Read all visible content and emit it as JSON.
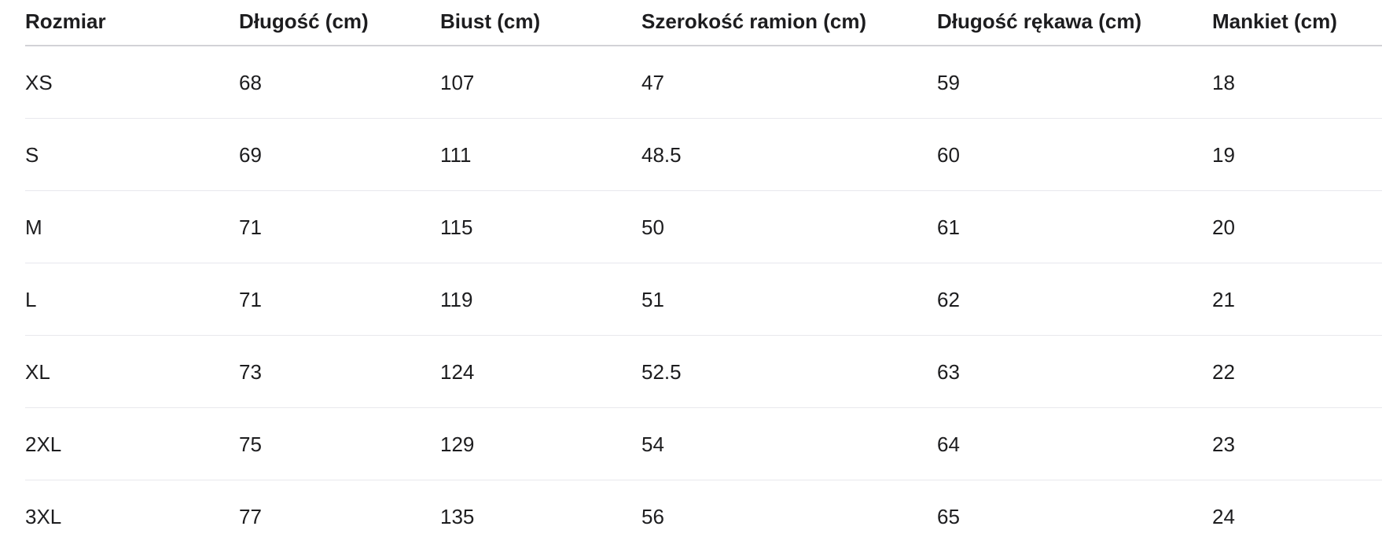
{
  "table": {
    "header": [
      "Rozmiar",
      "Długość (cm)",
      "Biust (cm)",
      "Szerokość ramion (cm)",
      "Długość rękawa (cm)",
      "Mankiet (cm)"
    ],
    "rows": [
      [
        "XS",
        68,
        107,
        47,
        59,
        18
      ],
      [
        "S",
        69,
        111,
        48.5,
        60,
        19
      ],
      [
        "M",
        71,
        115,
        50,
        61,
        20
      ],
      [
        "L",
        71,
        119,
        51,
        62,
        21
      ],
      [
        "XL",
        73,
        124,
        52.5,
        63,
        22
      ],
      [
        "2XL",
        75,
        129,
        54,
        64,
        23
      ],
      [
        "3XL",
        77,
        135,
        56,
        65,
        24
      ]
    ]
  }
}
